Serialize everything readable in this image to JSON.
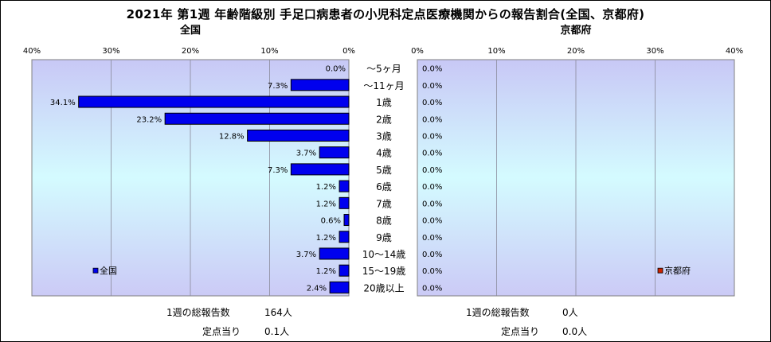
{
  "title": "2021年 第1週 年齢階級別 手足口病患者の小児科定点医療機関からの報告割合(全国、京都府)",
  "colors": {
    "national_bar": "#0000ee",
    "kyoto_marker": "#cc2200",
    "plot_bg_top": "#c8c8f6",
    "plot_bg_mid": "#d4fbff",
    "plot_bg_bottom": "#cbcaf6"
  },
  "chart_data": [
    {
      "type": "bar",
      "orientation": "horizontal",
      "direction": "right-to-left",
      "title": "全国",
      "categories": [
        "～5ヶ月",
        "～11ヶ月",
        "1歳",
        "2歳",
        "3歳",
        "4歳",
        "5歳",
        "6歳",
        "7歳",
        "8歳",
        "9歳",
        "10～14歳",
        "15～19歳",
        "20歳以上"
      ],
      "series": [
        {
          "name": "全国",
          "values": [
            0.0,
            7.3,
            34.1,
            23.2,
            12.8,
            3.7,
            7.3,
            1.2,
            1.2,
            0.6,
            1.2,
            3.7,
            1.2,
            2.4
          ]
        }
      ],
      "data_labels": [
        "0.0%",
        "7.3%",
        "34.1%",
        "23.2%",
        "12.8%",
        "3.7%",
        "7.3%",
        "1.2%",
        "1.2%",
        "0.6%",
        "1.2%",
        "3.7%",
        "1.2%",
        "2.4%"
      ],
      "xlim": [
        0,
        40
      ],
      "xticks": [
        "40%",
        "30%",
        "20%",
        "10%",
        "0%"
      ],
      "grid": true,
      "legend": "bottom-left"
    },
    {
      "type": "bar",
      "orientation": "horizontal",
      "direction": "left-to-right",
      "title": "京都府",
      "categories": [
        "～5ヶ月",
        "～11ヶ月",
        "1歳",
        "2歳",
        "3歳",
        "4歳",
        "5歳",
        "6歳",
        "7歳",
        "8歳",
        "9歳",
        "10～14歳",
        "15～19歳",
        "20歳以上"
      ],
      "series": [
        {
          "name": "京都府",
          "values": [
            0,
            0,
            0,
            0,
            0,
            0,
            0,
            0,
            0,
            0,
            0,
            0,
            0,
            0
          ]
        }
      ],
      "data_labels": [
        "0.0%",
        "0.0%",
        "0.0%",
        "0.0%",
        "0.0%",
        "0.0%",
        "0.0%",
        "0.0%",
        "0.0%",
        "0.0%",
        "0.0%",
        "0.0%",
        "0.0%",
        "0.0%"
      ],
      "xlim": [
        0,
        40
      ],
      "xticks": [
        "0%",
        "10%",
        "20%",
        "30%",
        "40%"
      ],
      "grid": true,
      "legend": "bottom-right"
    }
  ],
  "footer": {
    "national": {
      "total_label": "1週の総報告数",
      "total_value": "164人",
      "per_label": "定点当り",
      "per_value": "0.1人"
    },
    "kyoto": {
      "total_label": "1週の総報告数",
      "total_value": "0人",
      "per_label": "定点当り",
      "per_value": "0.0人"
    }
  }
}
